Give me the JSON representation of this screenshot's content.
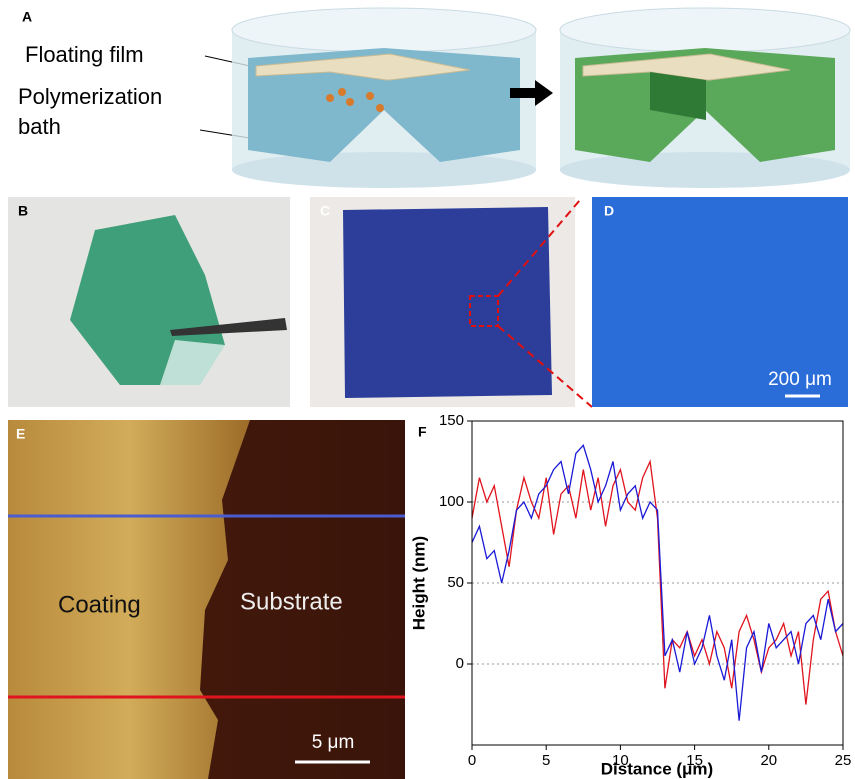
{
  "panels": {
    "a": {
      "label": "A",
      "film": "Floating film",
      "bath_1": "Polymerization",
      "bath_2": "bath"
    },
    "b": {
      "label": "B"
    },
    "c": {
      "label": "C"
    },
    "d": {
      "label": "D",
      "scale": "200 μm"
    },
    "e": {
      "label": "E",
      "left": "Coating",
      "right": "Substrate",
      "scale": "5 μm"
    },
    "f": {
      "label": "F"
    }
  },
  "chart_data": {
    "type": "line",
    "xlabel": "Distance (μm)",
    "ylabel": "Height (nm)",
    "x": [
      0,
      0.5,
      1,
      1.5,
      2,
      2.5,
      3,
      3.5,
      4,
      4.5,
      5,
      5.5,
      6,
      6.5,
      7,
      7.5,
      8,
      8.5,
      9,
      9.5,
      10,
      10.5,
      11,
      11.5,
      12,
      12.5,
      13,
      13.5,
      14,
      14.5,
      15,
      15.5,
      16,
      16.5,
      17,
      17.5,
      18,
      18.5,
      19,
      19.5,
      20,
      20.5,
      21,
      21.5,
      22,
      22.5,
      23,
      23.5,
      24,
      24.5,
      25
    ],
    "series": [
      {
        "color": "#e0141e",
        "values": [
          90,
          115,
          100,
          110,
          85,
          60,
          95,
          115,
          100,
          90,
          115,
          80,
          105,
          110,
          90,
          120,
          95,
          115,
          85,
          110,
          120,
          100,
          95,
          115,
          125,
          90,
          -15,
          15,
          10,
          20,
          5,
          15,
          0,
          20,
          10,
          -15,
          20,
          30,
          15,
          -5,
          10,
          15,
          25,
          5,
          20,
          -25,
          15,
          40,
          45,
          20,
          5
        ]
      },
      {
        "color": "#1a1ad6",
        "values": [
          75,
          85,
          65,
          70,
          50,
          70,
          95,
          100,
          90,
          105,
          110,
          120,
          125,
          105,
          130,
          135,
          120,
          100,
          110,
          125,
          95,
          105,
          110,
          90,
          100,
          95,
          5,
          15,
          -5,
          20,
          0,
          10,
          30,
          5,
          -10,
          15,
          -35,
          10,
          20,
          -5,
          25,
          10,
          15,
          20,
          0,
          25,
          30,
          15,
          40,
          20,
          25
        ]
      }
    ],
    "xlim": [
      0,
      25
    ],
    "xticks": [
      0,
      5,
      10,
      15,
      20,
      25
    ],
    "ylim": [
      -50,
      150
    ],
    "yticks": [
      0,
      50,
      100,
      150
    ],
    "grid": true
  }
}
